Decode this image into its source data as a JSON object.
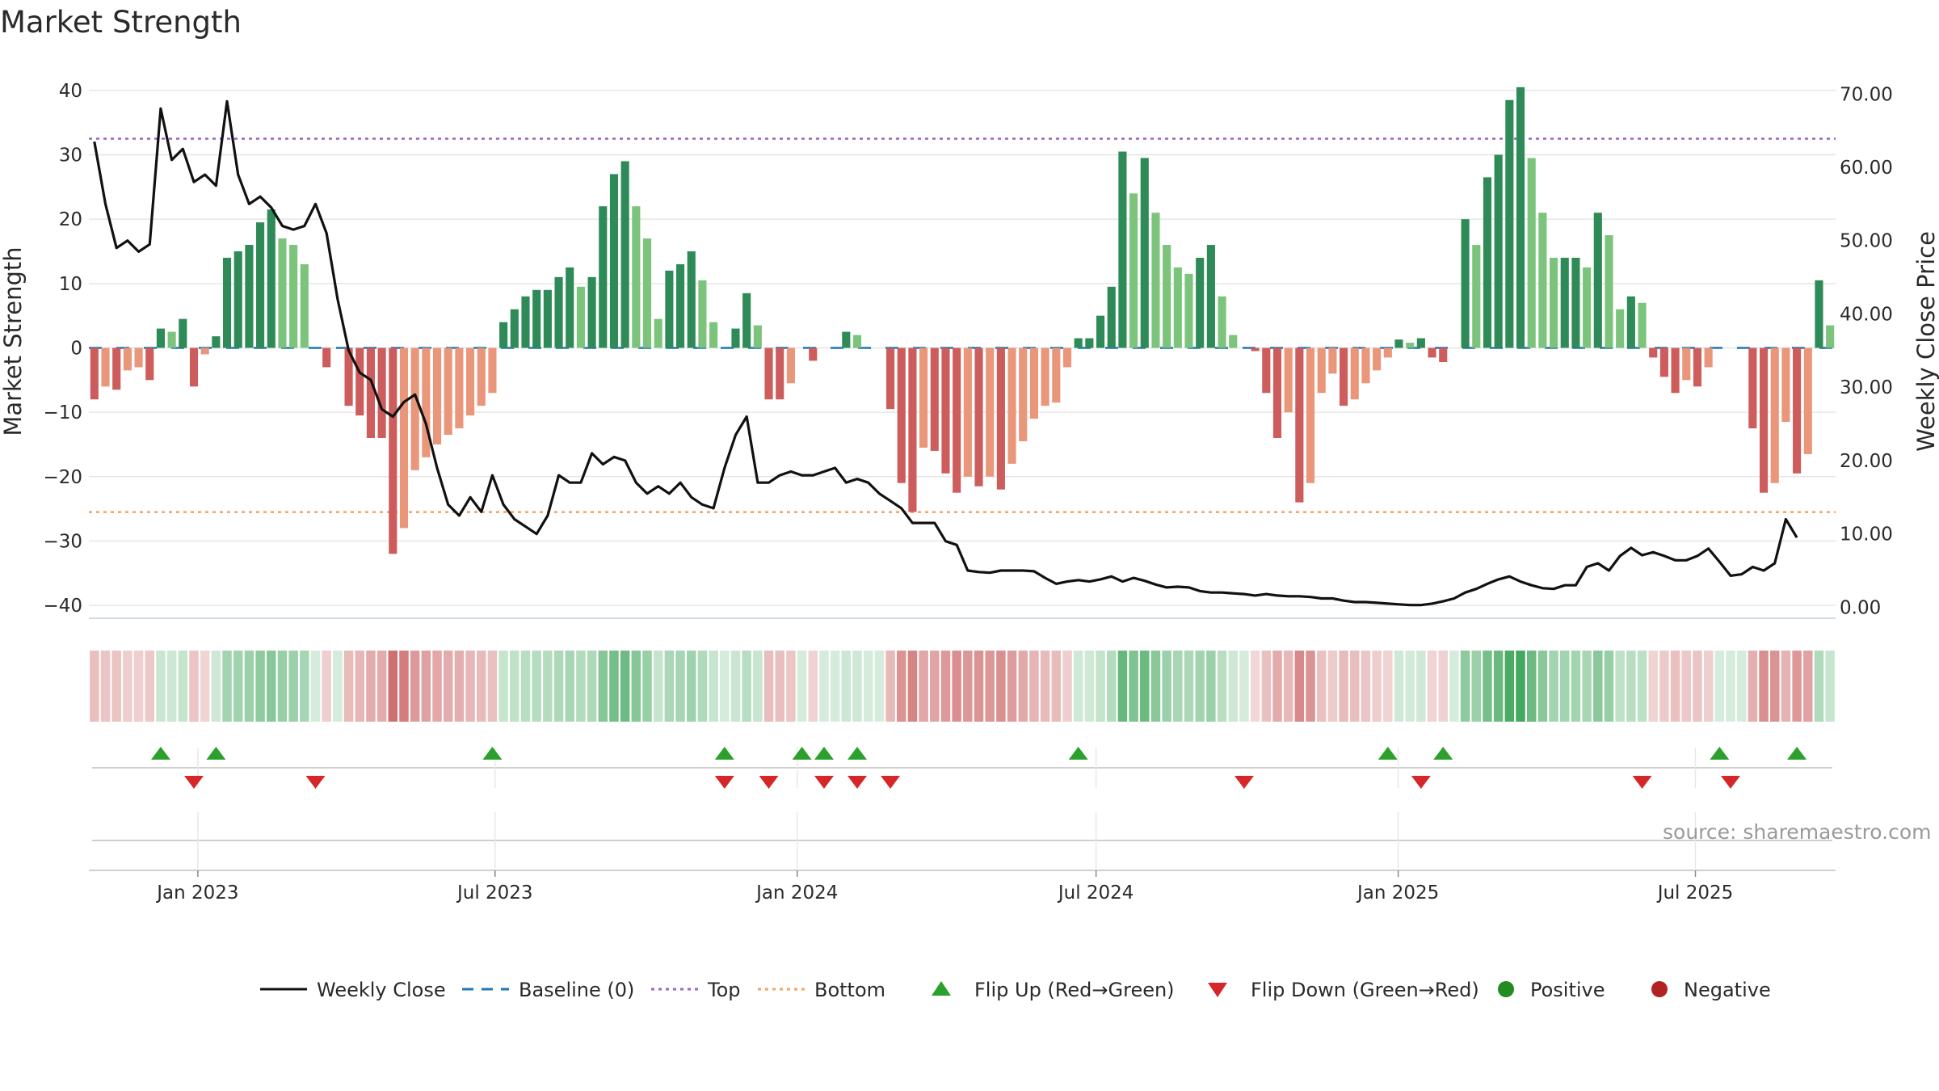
{
  "chart": {
    "title": "Market Strength",
    "watermark": "source: sharemaestro.com"
  },
  "colors": {
    "strong_green": "#2e8b57",
    "light_green": "#7cc47c",
    "strong_red": "#cd5c5c",
    "light_red": "#e9967a",
    "line": "#111111",
    "baseline": "#1f77b4",
    "top": "#9966cc",
    "bottom": "#f4a460",
    "flip_up": "#2ca02c",
    "flip_down": "#d62728",
    "positive": "#228b22",
    "negative": "#b22222"
  },
  "chart_data": {
    "type": "bar+line",
    "title": "Market Strength",
    "ylabel": "Market Strength",
    "y2label": "Weekly Close Price",
    "ylim": [
      -42,
      44
    ],
    "y2lim": [
      -1.5,
      74
    ],
    "yticks": [
      40,
      30,
      20,
      10,
      0,
      -10,
      -20,
      -30,
      -40
    ],
    "y2ticks": [
      "70.00",
      "60.00",
      "50.00",
      "40.00",
      "30.00",
      "20.00",
      "10.00",
      "0.00"
    ],
    "x_start": "2022-10-30",
    "x_end": "2025-09-21",
    "x_tick_labels": [
      {
        "date": "2023-01-01",
        "label": "Jan 2023"
      },
      {
        "date": "2023-07-01",
        "label": "Jul 2023"
      },
      {
        "date": "2024-01-01",
        "label": "Jan 2024"
      },
      {
        "date": "2024-07-01",
        "label": "Jul 2024"
      },
      {
        "date": "2025-01-01",
        "label": "Jan 2025"
      },
      {
        "date": "2025-07-01",
        "label": "Jul 2025"
      }
    ],
    "top_level": 32.5,
    "bottom_level": -25.5,
    "strength": [
      -8,
      -6,
      -6.5,
      -3.5,
      -3,
      -5,
      3,
      2.5,
      4.5,
      -6,
      -1,
      1.8,
      14,
      15,
      16,
      19.5,
      21.5,
      17,
      16,
      13,
      0,
      -3,
      0,
      -9,
      -10.5,
      -14,
      -14,
      -32,
      -28,
      -19,
      -17,
      -15,
      -13.5,
      -12.5,
      -10.5,
      -9,
      -7,
      4,
      6,
      8,
      9,
      9,
      11,
      12.5,
      9.5,
      11,
      22,
      27,
      29,
      22,
      17,
      4.5,
      12,
      13,
      15,
      10.5,
      4,
      0,
      3,
      8.5,
      3.5,
      -8,
      -8,
      -5.5,
      0,
      -2,
      0,
      0,
      2.5,
      2,
      0,
      0,
      -9.5,
      -21,
      -25.5,
      -15.5,
      -16,
      -19.5,
      -22.5,
      -20,
      -21.5,
      -20,
      -22,
      -18,
      -14.5,
      -11,
      -9,
      -8.5,
      -3,
      1.5,
      1.5,
      5,
      9.5,
      30.5,
      24,
      29.5,
      21,
      16,
      12.5,
      11.5,
      14,
      16,
      8,
      2,
      0,
      -0.5,
      -7,
      -14,
      -10,
      -24,
      -21,
      -7,
      -4,
      -9,
      -8,
      -5.5,
      -3.5,
      -1.5,
      1.3,
      0.8,
      1.5,
      -1.5,
      -2.2,
      0,
      20,
      16,
      26.5,
      30,
      38.5,
      40.5,
      29.5,
      21,
      14,
      14,
      14,
      12.5,
      21,
      17.5,
      6,
      8,
      7,
      -1.5,
      -4.5,
      -7,
      -5,
      -6,
      -3,
      0,
      0,
      0,
      -12.5,
      -22.5,
      -21,
      -11.5,
      -19.5,
      -16.5,
      10.5,
      3.5
    ],
    "close": [
      63.5,
      55,
      49,
      50,
      48.5,
      49.5,
      68,
      61,
      62.5,
      58,
      59,
      57.5,
      69,
      59,
      55,
      56,
      54.5,
      52,
      51.5,
      52,
      55,
      51,
      42,
      35,
      32,
      31,
      27,
      26,
      28,
      29,
      25,
      19,
      14,
      12.5,
      15,
      13,
      18,
      14,
      12,
      11,
      10,
      12.5,
      18,
      17,
      17,
      21,
      19.5,
      20.5,
      20,
      17,
      15.5,
      16.5,
      15.5,
      17,
      15,
      14,
      13.5,
      19,
      23.5,
      26,
      17,
      17,
      18,
      18.5,
      18,
      18,
      18.5,
      19,
      17,
      17.5,
      17,
      15.5,
      14.5,
      13.5,
      11.5,
      11.5,
      11.5,
      9,
      8.5,
      5,
      4.8,
      4.7,
      5,
      5,
      5,
      4.9,
      4,
      3.2,
      3.5,
      3.7,
      3.5,
      3.8,
      4.2,
      3.5,
      4,
      3.6,
      3.1,
      2.7,
      2.8,
      2.7,
      2.2,
      2,
      2,
      1.9,
      1.8,
      1.6,
      1.8,
      1.6,
      1.5,
      1.5,
      1.4,
      1.2,
      1.2,
      0.9,
      0.7,
      0.7,
      0.6,
      0.5,
      0.4,
      0.3,
      0.3,
      0.5,
      0.8,
      1.2,
      2,
      2.5,
      3.2,
      3.8,
      4.2,
      3.5,
      3,
      2.6,
      2.5,
      3,
      3,
      5.5,
      6,
      5,
      7,
      8.1,
      7.1,
      7.5,
      7,
      6.4,
      6.4,
      7,
      8,
      6.2,
      4.3,
      4.5,
      5.5,
      5,
      6,
      12,
      9.5
    ],
    "flip_up_weeks": [
      6,
      11,
      36,
      57,
      64,
      66,
      69,
      89,
      117,
      122,
      147,
      154
    ],
    "flip_down_weeks": [
      9,
      20,
      57,
      61,
      66,
      69,
      72,
      104,
      120,
      140,
      148
    ],
    "legend": [
      {
        "label": "Weekly Close",
        "kind": "line"
      },
      {
        "label": "Baseline (0)",
        "kind": "dash-blue"
      },
      {
        "label": "Top",
        "kind": "dot-purple"
      },
      {
        "label": "Bottom",
        "kind": "dot-orange"
      },
      {
        "label": "Flip Up (Red→Green)",
        "kind": "tri-up"
      },
      {
        "label": "Flip Down (Green→Red)",
        "kind": "tri-down"
      },
      {
        "label": "Positive",
        "kind": "dot-green"
      },
      {
        "label": "Negative",
        "kind": "dot-red"
      }
    ]
  }
}
